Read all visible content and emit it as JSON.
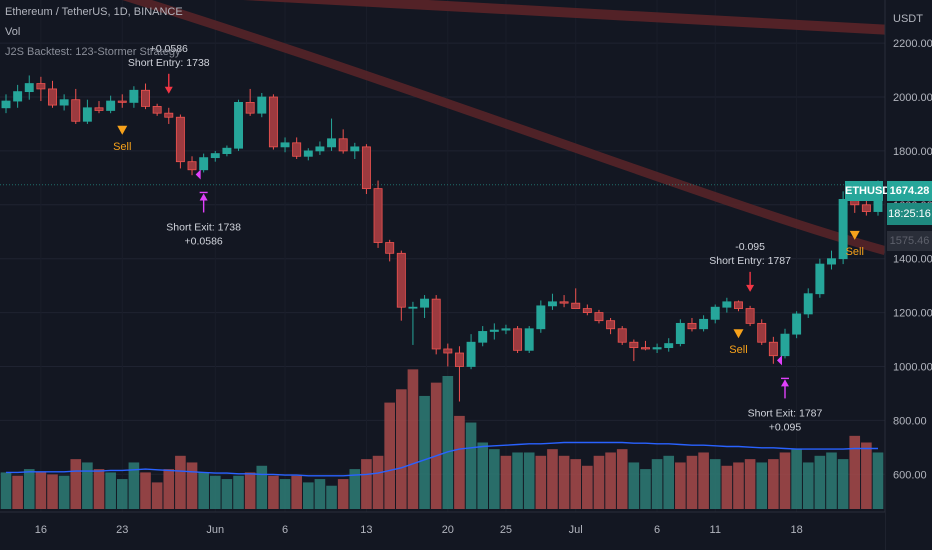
{
  "header": {
    "symbol_line": "Ethereum / TetherUS, 1D, BINANCE",
    "volume_label": "Vol",
    "strategy_label": "J2S Backtest: 123-Stormer Strategy"
  },
  "price_scale": {
    "currency_label": "USDT",
    "ticks": [
      2200,
      2000,
      1800,
      1600,
      1400,
      1200,
      1000,
      800,
      600
    ],
    "tick_labels": [
      "2200.00",
      "2000.00",
      "1800.00",
      "1600.00",
      "1400.00",
      "1200.00",
      "1000.00",
      "800.00",
      "600.00"
    ],
    "symbol_badge": "ETHUSDT",
    "last_price": "1674.28",
    "countdown": "18:25:16",
    "sma_value": "1575.46"
  },
  "time_axis": {
    "ticks": [
      "16",
      "23",
      "Jun",
      "6",
      "13",
      "20",
      "25",
      "Jul",
      "6",
      "11",
      "18"
    ]
  },
  "chart_data": {
    "type": "candlestick",
    "ylim": [
      460,
      2360
    ],
    "up_color": "#26a69a",
    "down_color": "#ef5350",
    "candles": [
      {
        "o": 1960,
        "h": 2010,
        "l": 1940,
        "c": 1985
      },
      {
        "o": 1985,
        "h": 2045,
        "l": 1960,
        "c": 2020
      },
      {
        "o": 2020,
        "h": 2080,
        "l": 1990,
        "c": 2050
      },
      {
        "o": 2050,
        "h": 2075,
        "l": 1985,
        "c": 2030
      },
      {
        "o": 2030,
        "h": 2060,
        "l": 1960,
        "c": 1970
      },
      {
        "o": 1970,
        "h": 2010,
        "l": 1950,
        "c": 1990
      },
      {
        "o": 1990,
        "h": 2030,
        "l": 1900,
        "c": 1910
      },
      {
        "o": 1910,
        "h": 1990,
        "l": 1900,
        "c": 1960
      },
      {
        "o": 1960,
        "h": 1985,
        "l": 1940,
        "c": 1950
      },
      {
        "o": 1950,
        "h": 2005,
        "l": 1940,
        "c": 1985
      },
      {
        "o": 1985,
        "h": 2010,
        "l": 1960,
        "c": 1980
      },
      {
        "o": 1980,
        "h": 2040,
        "l": 1960,
        "c": 2025
      },
      {
        "o": 2025,
        "h": 2050,
        "l": 1955,
        "c": 1965
      },
      {
        "o": 1965,
        "h": 1975,
        "l": 1930,
        "c": 1940
      },
      {
        "o": 1940,
        "h": 1960,
        "l": 1900,
        "c": 1925
      },
      {
        "o": 1925,
        "h": 1935,
        "l": 1735,
        "c": 1760
      },
      {
        "o": 1760,
        "h": 1780,
        "l": 1710,
        "c": 1730
      },
      {
        "o": 1730,
        "h": 1790,
        "l": 1720,
        "c": 1775
      },
      {
        "o": 1775,
        "h": 1800,
        "l": 1760,
        "c": 1790
      },
      {
        "o": 1790,
        "h": 1820,
        "l": 1780,
        "c": 1810
      },
      {
        "o": 1810,
        "h": 1990,
        "l": 1800,
        "c": 1980
      },
      {
        "o": 1980,
        "h": 2030,
        "l": 1930,
        "c": 1940
      },
      {
        "o": 1940,
        "h": 2015,
        "l": 1925,
        "c": 2000
      },
      {
        "o": 2000,
        "h": 2010,
        "l": 1805,
        "c": 1815
      },
      {
        "o": 1815,
        "h": 1850,
        "l": 1795,
        "c": 1830
      },
      {
        "o": 1830,
        "h": 1850,
        "l": 1770,
        "c": 1780
      },
      {
        "o": 1780,
        "h": 1810,
        "l": 1765,
        "c": 1800
      },
      {
        "o": 1800,
        "h": 1835,
        "l": 1785,
        "c": 1815
      },
      {
        "o": 1815,
        "h": 1920,
        "l": 1800,
        "c": 1845
      },
      {
        "o": 1845,
        "h": 1880,
        "l": 1790,
        "c": 1800
      },
      {
        "o": 1800,
        "h": 1830,
        "l": 1770,
        "c": 1815
      },
      {
        "o": 1815,
        "h": 1825,
        "l": 1640,
        "c": 1660
      },
      {
        "o": 1660,
        "h": 1690,
        "l": 1440,
        "c": 1460
      },
      {
        "o": 1460,
        "h": 1470,
        "l": 1390,
        "c": 1420
      },
      {
        "o": 1420,
        "h": 1430,
        "l": 1170,
        "c": 1220
      },
      {
        "o": 1220,
        "h": 1240,
        "l": 1080,
        "c": 1220
      },
      {
        "o": 1220,
        "h": 1265,
        "l": 1180,
        "c": 1250
      },
      {
        "o": 1250,
        "h": 1265,
        "l": 1045,
        "c": 1065
      },
      {
        "o": 1065,
        "h": 1085,
        "l": 1000,
        "c": 1050
      },
      {
        "o": 1050,
        "h": 1075,
        "l": 870,
        "c": 1000
      },
      {
        "o": 1000,
        "h": 1120,
        "l": 990,
        "c": 1090
      },
      {
        "o": 1090,
        "h": 1150,
        "l": 1075,
        "c": 1130
      },
      {
        "o": 1130,
        "h": 1160,
        "l": 1100,
        "c": 1135
      },
      {
        "o": 1135,
        "h": 1155,
        "l": 1120,
        "c": 1140
      },
      {
        "o": 1140,
        "h": 1150,
        "l": 1050,
        "c": 1060
      },
      {
        "o": 1060,
        "h": 1150,
        "l": 1050,
        "c": 1140
      },
      {
        "o": 1140,
        "h": 1245,
        "l": 1125,
        "c": 1225
      },
      {
        "o": 1225,
        "h": 1270,
        "l": 1210,
        "c": 1240
      },
      {
        "o": 1240,
        "h": 1265,
        "l": 1220,
        "c": 1235
      },
      {
        "o": 1235,
        "h": 1290,
        "l": 1220,
        "c": 1215
      },
      {
        "o": 1215,
        "h": 1230,
        "l": 1190,
        "c": 1200
      },
      {
        "o": 1200,
        "h": 1210,
        "l": 1160,
        "c": 1170
      },
      {
        "o": 1170,
        "h": 1180,
        "l": 1120,
        "c": 1140
      },
      {
        "o": 1140,
        "h": 1150,
        "l": 1080,
        "c": 1090
      },
      {
        "o": 1090,
        "h": 1100,
        "l": 1020,
        "c": 1070
      },
      {
        "o": 1070,
        "h": 1095,
        "l": 1060,
        "c": 1065
      },
      {
        "o": 1065,
        "h": 1085,
        "l": 1050,
        "c": 1070
      },
      {
        "o": 1070,
        "h": 1105,
        "l": 1055,
        "c": 1085
      },
      {
        "o": 1085,
        "h": 1175,
        "l": 1075,
        "c": 1160
      },
      {
        "o": 1160,
        "h": 1180,
        "l": 1130,
        "c": 1140
      },
      {
        "o": 1140,
        "h": 1190,
        "l": 1130,
        "c": 1175
      },
      {
        "o": 1175,
        "h": 1230,
        "l": 1160,
        "c": 1220
      },
      {
        "o": 1220,
        "h": 1255,
        "l": 1200,
        "c": 1240
      },
      {
        "o": 1240,
        "h": 1245,
        "l": 1205,
        "c": 1215
      },
      {
        "o": 1215,
        "h": 1225,
        "l": 1150,
        "c": 1160
      },
      {
        "o": 1160,
        "h": 1175,
        "l": 1080,
        "c": 1090
      },
      {
        "o": 1090,
        "h": 1110,
        "l": 1010,
        "c": 1040
      },
      {
        "o": 1040,
        "h": 1140,
        "l": 1030,
        "c": 1120
      },
      {
        "o": 1120,
        "h": 1205,
        "l": 1105,
        "c": 1195
      },
      {
        "o": 1195,
        "h": 1290,
        "l": 1180,
        "c": 1270
      },
      {
        "o": 1270,
        "h": 1400,
        "l": 1255,
        "c": 1380
      },
      {
        "o": 1380,
        "h": 1430,
        "l": 1360,
        "c": 1400
      },
      {
        "o": 1400,
        "h": 1650,
        "l": 1380,
        "c": 1620
      },
      {
        "o": 1620,
        "h": 1660,
        "l": 1570,
        "c": 1600
      },
      {
        "o": 1600,
        "h": 1640,
        "l": 1560,
        "c": 1575
      },
      {
        "o": 1575,
        "h": 1690,
        "l": 1560,
        "c": 1674.28
      }
    ],
    "volume": [
      {
        "v": 0.55,
        "up": true
      },
      {
        "v": 0.5,
        "up": false
      },
      {
        "v": 0.6,
        "up": true
      },
      {
        "v": 0.55,
        "up": false
      },
      {
        "v": 0.52,
        "up": false
      },
      {
        "v": 0.5,
        "up": true
      },
      {
        "v": 0.75,
        "up": false
      },
      {
        "v": 0.7,
        "up": true
      },
      {
        "v": 0.6,
        "up": false
      },
      {
        "v": 0.55,
        "up": true
      },
      {
        "v": 0.45,
        "up": true
      },
      {
        "v": 0.7,
        "up": true
      },
      {
        "v": 0.55,
        "up": false
      },
      {
        "v": 0.4,
        "up": false
      },
      {
        "v": 0.6,
        "up": false
      },
      {
        "v": 0.8,
        "up": false
      },
      {
        "v": 0.7,
        "up": false
      },
      {
        "v": 0.55,
        "up": true
      },
      {
        "v": 0.5,
        "up": true
      },
      {
        "v": 0.45,
        "up": true
      },
      {
        "v": 0.5,
        "up": true
      },
      {
        "v": 0.55,
        "up": false
      },
      {
        "v": 0.65,
        "up": true
      },
      {
        "v": 0.5,
        "up": false
      },
      {
        "v": 0.45,
        "up": true
      },
      {
        "v": 0.5,
        "up": false
      },
      {
        "v": 0.4,
        "up": true
      },
      {
        "v": 0.45,
        "up": true
      },
      {
        "v": 0.35,
        "up": true
      },
      {
        "v": 0.45,
        "up": false
      },
      {
        "v": 0.6,
        "up": true
      },
      {
        "v": 0.75,
        "up": false
      },
      {
        "v": 0.8,
        "up": false
      },
      {
        "v": 1.6,
        "up": false
      },
      {
        "v": 1.8,
        "up": false
      },
      {
        "v": 2.1,
        "up": false
      },
      {
        "v": 1.7,
        "up": true
      },
      {
        "v": 1.9,
        "up": false
      },
      {
        "v": 2.0,
        "up": true
      },
      {
        "v": 1.4,
        "up": false
      },
      {
        "v": 1.3,
        "up": true
      },
      {
        "v": 1.0,
        "up": true
      },
      {
        "v": 0.9,
        "up": true
      },
      {
        "v": 0.8,
        "up": false
      },
      {
        "v": 0.85,
        "up": true
      },
      {
        "v": 0.85,
        "up": true
      },
      {
        "v": 0.8,
        "up": false
      },
      {
        "v": 0.9,
        "up": false
      },
      {
        "v": 0.8,
        "up": false
      },
      {
        "v": 0.75,
        "up": false
      },
      {
        "v": 0.65,
        "up": false
      },
      {
        "v": 0.8,
        "up": false
      },
      {
        "v": 0.85,
        "up": false
      },
      {
        "v": 0.9,
        "up": false
      },
      {
        "v": 0.7,
        "up": true
      },
      {
        "v": 0.6,
        "up": true
      },
      {
        "v": 0.75,
        "up": true
      },
      {
        "v": 0.8,
        "up": true
      },
      {
        "v": 0.7,
        "up": false
      },
      {
        "v": 0.8,
        "up": false
      },
      {
        "v": 0.85,
        "up": false
      },
      {
        "v": 0.75,
        "up": true
      },
      {
        "v": 0.65,
        "up": false
      },
      {
        "v": 0.7,
        "up": false
      },
      {
        "v": 0.75,
        "up": false
      },
      {
        "v": 0.7,
        "up": true
      },
      {
        "v": 0.75,
        "up": false
      },
      {
        "v": 0.85,
        "up": false
      },
      {
        "v": 0.9,
        "up": true
      },
      {
        "v": 0.7,
        "up": true
      },
      {
        "v": 0.8,
        "up": true
      },
      {
        "v": 0.85,
        "up": true
      },
      {
        "v": 0.75,
        "up": true
      },
      {
        "v": 1.1,
        "up": false
      },
      {
        "v": 1.0,
        "up": false
      },
      {
        "v": 0.85,
        "up": true
      }
    ],
    "volume_ma": [
      0.55,
      0.55,
      0.56,
      0.56,
      0.56,
      0.56,
      0.57,
      0.57,
      0.57,
      0.58,
      0.58,
      0.59,
      0.6,
      0.59,
      0.58,
      0.57,
      0.56,
      0.55,
      0.54,
      0.54,
      0.53,
      0.53,
      0.52,
      0.52,
      0.51,
      0.51,
      0.5,
      0.5,
      0.5,
      0.5,
      0.51,
      0.52,
      0.54,
      0.58,
      0.62,
      0.68,
      0.74,
      0.8,
      0.86,
      0.9,
      0.92,
      0.94,
      0.95,
      0.96,
      0.97,
      0.98,
      0.98,
      0.99,
      1.0,
      1.0,
      1.0,
      1.0,
      1.0,
      1.0,
      0.99,
      0.99,
      0.98,
      0.98,
      0.97,
      0.96,
      0.96,
      0.95,
      0.94,
      0.94,
      0.93,
      0.92,
      0.92,
      0.91,
      0.9,
      0.9,
      0.9,
      0.9,
      0.9,
      0.91,
      0.91,
      0.91
    ],
    "sma_line": {
      "from": {
        "i": 0,
        "y": 2530
      },
      "to": {
        "i": 75,
        "y": 1420
      }
    },
    "signals": [
      {
        "type": "short-entry",
        "i": 14,
        "label": "Short Entry: 1738",
        "pnl": "+0.0586"
      },
      {
        "type": "short-exit",
        "i": 17,
        "label": "Short Exit: 1738",
        "pnl": "+0.0586"
      },
      {
        "type": "sell",
        "i": 10,
        "label": "Sell"
      },
      {
        "type": "short-entry",
        "i": 64,
        "label": "Short Entry: 1787",
        "pnl": "-0.095"
      },
      {
        "type": "short-exit",
        "i": 67,
        "label": "Short Exit: 1787",
        "pnl": "+0.095"
      },
      {
        "type": "sell",
        "i": 63,
        "label": "Sell"
      },
      {
        "type": "sell",
        "i": 73,
        "label": "Sell"
      }
    ],
    "sell_color": "#f7a21b",
    "exit_color": "#e040fb",
    "entry_color": "#f23645"
  }
}
